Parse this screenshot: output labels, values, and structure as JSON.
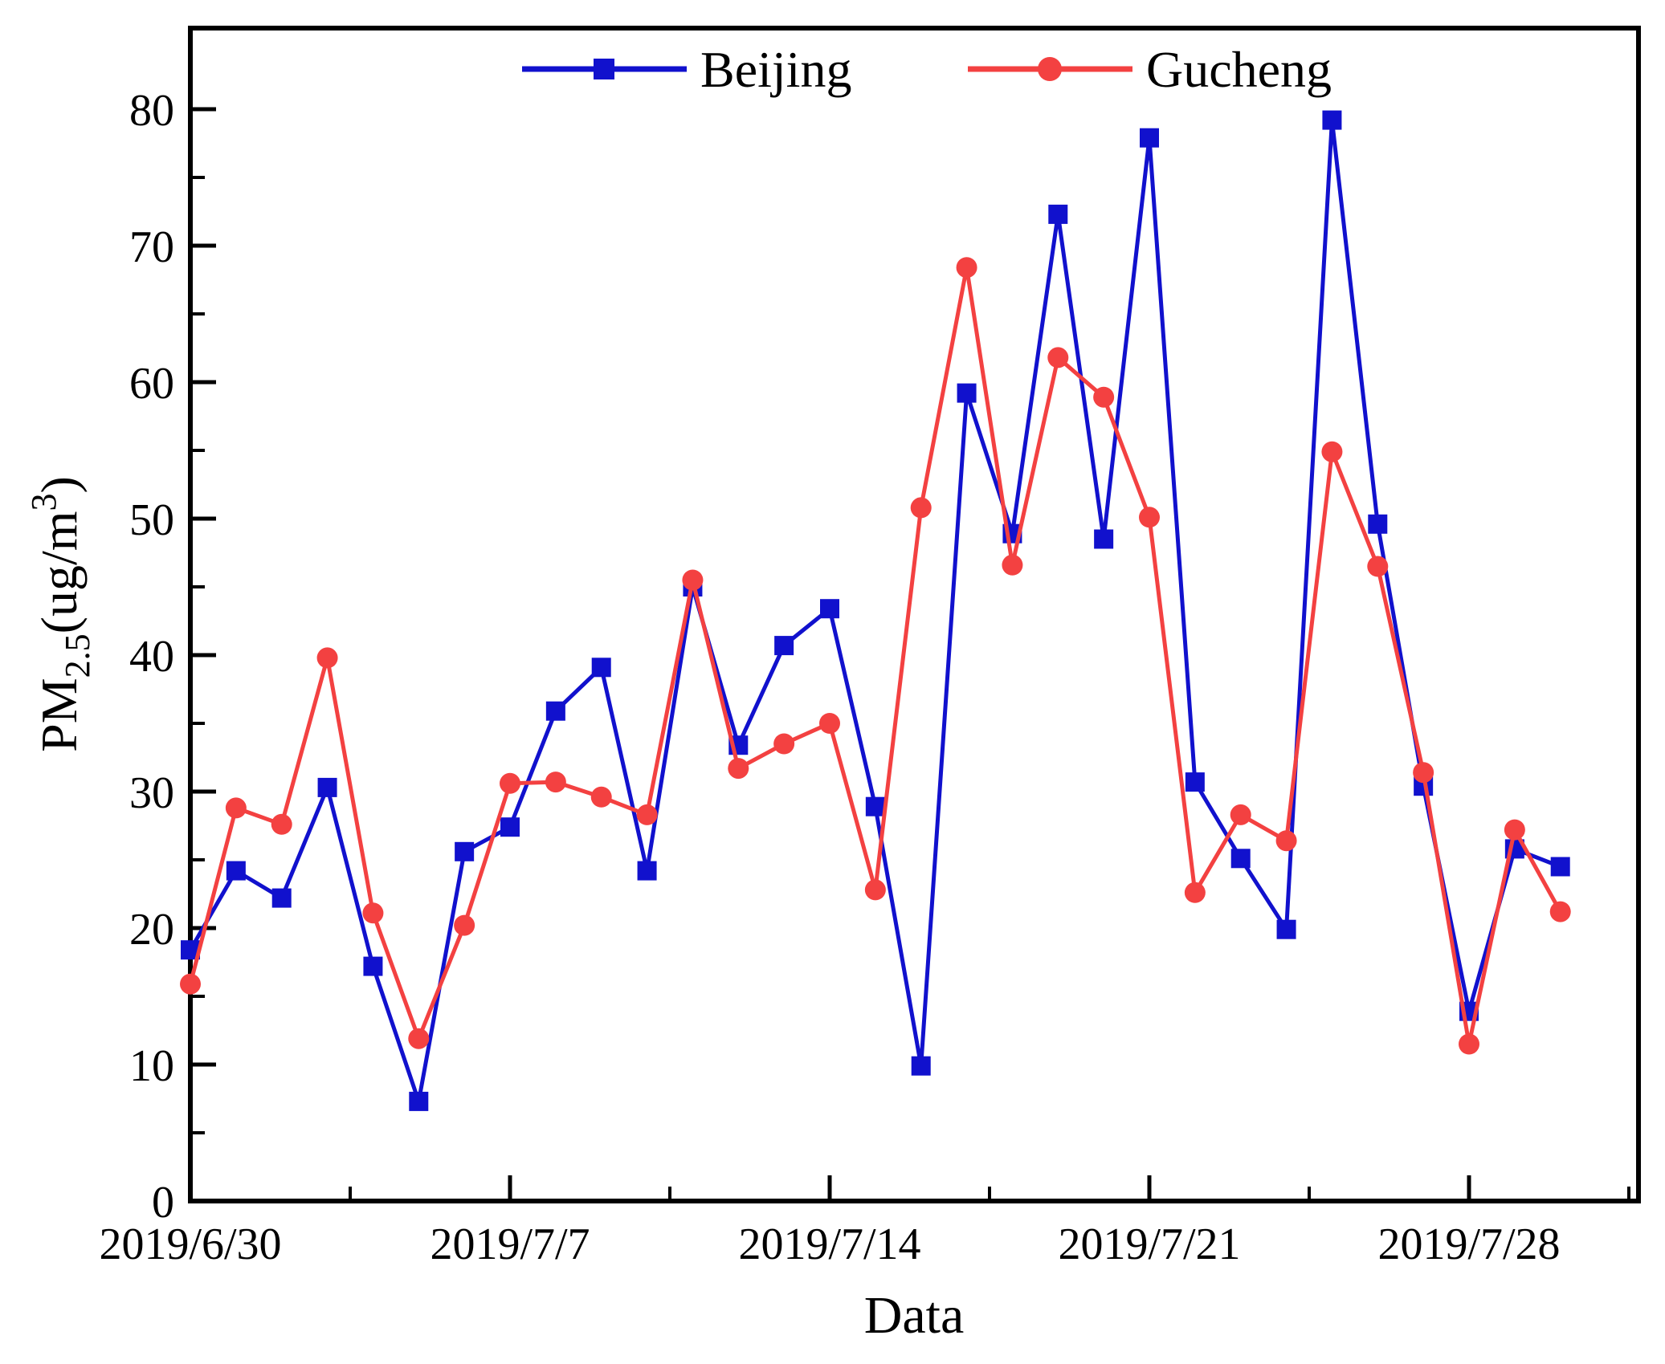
{
  "figure": {
    "background": "#ffffff",
    "frame_color": "#000000",
    "accent_blue": "#1111cd",
    "accent_red": "#f34141"
  },
  "legend": {
    "position": "top-center-inside",
    "items": [
      {
        "label": "Beijing",
        "color": "#1111cd",
        "marker": "square-icon"
      },
      {
        "label": "Gucheng",
        "color": "#f34141",
        "marker": "circle-icon"
      }
    ]
  },
  "axes": {
    "x": {
      "label": "Data",
      "major_ticks": [
        {
          "day": 0,
          "label": "2019/6/30"
        },
        {
          "day": 7,
          "label": "2019/7/7"
        },
        {
          "day": 14,
          "label": "2019/7/14"
        },
        {
          "day": 21,
          "label": "2019/7/21"
        },
        {
          "day": 28,
          "label": "2019/7/28"
        }
      ],
      "minor_tick_days": [
        3.5,
        10.5,
        17.5,
        24.5,
        31.5
      ]
    },
    "y": {
      "label_parts": {
        "prefix": "PM",
        "sub": "2.5",
        "mid": "(ug/m",
        "sup": "3",
        "suffix": ")"
      },
      "ticks": [
        0,
        10,
        20,
        30,
        40,
        50,
        60,
        70,
        80
      ],
      "minor_ticks": [
        5,
        15,
        25,
        35,
        45,
        55,
        65,
        75
      ],
      "range": [
        0,
        80
      ]
    }
  },
  "chart_data": {
    "type": "line",
    "title": "",
    "xlabel": "Data",
    "ylabel": "PM2.5(ug/m3)",
    "ylim": [
      0,
      80
    ],
    "grid": false,
    "legend_position": "top-center-inside",
    "x": [
      "2019/6/30",
      "2019/7/1",
      "2019/7/2",
      "2019/7/3",
      "2019/7/4",
      "2019/7/5",
      "2019/7/6",
      "2019/7/7",
      "2019/7/8",
      "2019/7/9",
      "2019/7/10",
      "2019/7/11",
      "2019/7/12",
      "2019/7/13",
      "2019/7/14",
      "2019/7/15",
      "2019/7/16",
      "2019/7/17",
      "2019/7/18",
      "2019/7/19",
      "2019/7/20",
      "2019/7/21",
      "2019/7/22",
      "2019/7/23",
      "2019/7/24",
      "2019/7/25",
      "2019/7/26",
      "2019/7/27",
      "2019/7/28",
      "2019/7/29",
      "2019/7/30"
    ],
    "series": [
      {
        "name": "Beijing",
        "color": "#1111cd",
        "marker": "square",
        "values": [
          18.4,
          24.2,
          22.2,
          30.3,
          17.2,
          7.3,
          25.6,
          27.4,
          35.9,
          39.1,
          24.2,
          45.0,
          33.4,
          40.7,
          43.4,
          28.9,
          9.9,
          59.2,
          48.9,
          72.3,
          48.5,
          77.9,
          30.7,
          25.1,
          19.9,
          79.2,
          49.6,
          30.4,
          13.9,
          25.8,
          24.5
        ]
      },
      {
        "name": "Gucheng",
        "color": "#f34141",
        "marker": "circle",
        "values": [
          15.9,
          28.8,
          27.6,
          39.8,
          21.1,
          11.9,
          20.2,
          30.6,
          30.7,
          29.6,
          28.3,
          45.5,
          31.7,
          33.5,
          35.0,
          22.8,
          50.8,
          68.4,
          46.6,
          61.8,
          58.9,
          50.1,
          22.6,
          28.3,
          26.4,
          54.9,
          46.5,
          31.4,
          11.5,
          27.2,
          21.2
        ]
      }
    ]
  }
}
